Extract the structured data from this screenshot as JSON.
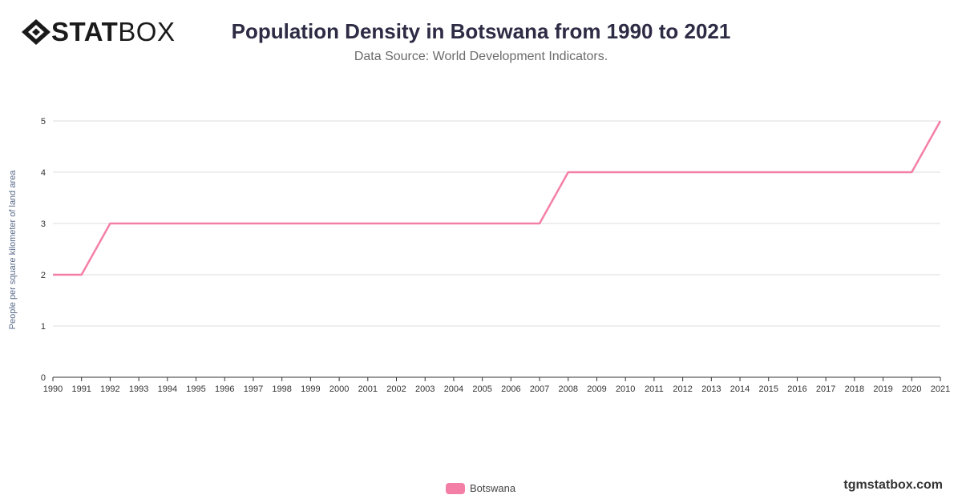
{
  "brand": {
    "word_bold": "STAT",
    "word_regular": "BOX",
    "footer": "tgmstatbox.com"
  },
  "header": {
    "title": "Population Density in Botswana from 1990 to 2021",
    "subtitle": "Data Source: World Development Indicators."
  },
  "colors": {
    "line": "#f47fa6",
    "grid": "#dddddd",
    "axis": "#333333",
    "tick_text": "#333333"
  },
  "chart_data": {
    "type": "line",
    "title": "Population Density in Botswana from 1990 to 2021",
    "subtitle": "Data Source: World Development Indicators.",
    "xlabel": "",
    "ylabel": "People per square kilometer of land area",
    "categories": [
      "1990",
      "1991",
      "1992",
      "1993",
      "1994",
      "1995",
      "1996",
      "1997",
      "1998",
      "1999",
      "2000",
      "2001",
      "2002",
      "2003",
      "2004",
      "2005",
      "2006",
      "2007",
      "2008",
      "2009",
      "2010",
      "2011",
      "2012",
      "2013",
      "2014",
      "2015",
      "2016",
      "2017",
      "2018",
      "2019",
      "2020",
      "2021"
    ],
    "series": [
      {
        "name": "Botswana",
        "values": [
          2,
          2,
          3,
          3,
          3,
          3,
          3,
          3,
          3,
          3,
          3,
          3,
          3,
          3,
          3,
          3,
          3,
          3,
          4,
          4,
          4,
          4,
          4,
          4,
          4,
          4,
          4,
          4,
          4,
          4,
          4,
          5
        ]
      }
    ],
    "ylim": [
      0,
      5
    ],
    "yticks": [
      0,
      1,
      2,
      3,
      4,
      5
    ],
    "grid": true,
    "legend": "bottom-center"
  }
}
